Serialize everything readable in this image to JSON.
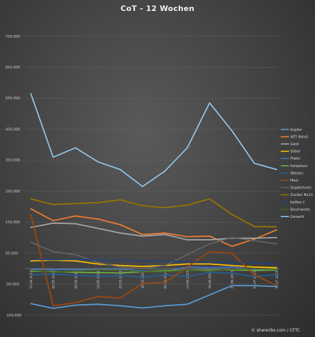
{
  "chart_data": {
    "type": "line",
    "title": "CoT - 12 Wochen",
    "xlabel": "",
    "ylabel": "",
    "ylim": [
      -150000,
      750000
    ],
    "y_tick_labels": [
      "750.000",
      "650.000",
      "550.000",
      "450.000",
      "350.000",
      "250.000",
      "150.000",
      "50.000",
      "-50.000",
      "-150.000"
    ],
    "y_tick_values": [
      750000,
      650000,
      550000,
      450000,
      350000,
      250000,
      150000,
      50000,
      -50000,
      -150000
    ],
    "categories": [
      "25.04.2023",
      "02.05.2023",
      "09.05.2023",
      "16.05.2023",
      "23.05.2023",
      "30.05.2023",
      "06.06.2023",
      "13.06.2023",
      "20.06.2023",
      "27.06.2023",
      "04.07.2023",
      "11.07.2023"
    ],
    "grid": true,
    "legend_position": "right",
    "series": [
      {
        "name": "Kupfer",
        "color": "#5b9bd5",
        "values": [
          -113000,
          -128000,
          -118000,
          -115000,
          -120000,
          -127000,
          -120000,
          -115000,
          -85000,
          -55000,
          -55000,
          -58000
        ]
      },
      {
        "name": "WTI Rohöl",
        "color": "#ed7d31",
        "values": [
          193000,
          155000,
          170000,
          160000,
          142000,
          110000,
          115000,
          103000,
          105000,
          72000,
          95000,
          125000
        ]
      },
      {
        "name": "Gold",
        "color": "#a5a5a5",
        "values": [
          133000,
          147000,
          145000,
          130000,
          115000,
          105000,
          110000,
          93000,
          93000,
          98000,
          98000,
          100000
        ]
      },
      {
        "name": "Silber",
        "color": "#ffc000",
        "values": [
          25000,
          27000,
          25000,
          15000,
          10000,
          7000,
          10000,
          15000,
          15000,
          10000,
          5000,
          3000
        ]
      },
      {
        "name": "Platin",
        "color": "#4472c4",
        "values": [
          -2000,
          -3000,
          -3000,
          -3000,
          -2000,
          -8000,
          -10000,
          5000,
          3000,
          5000,
          -2000,
          -5000
        ]
      },
      {
        "name": "Palladium",
        "color": "#70ad47",
        "values": [
          -8000,
          -10000,
          -12000,
          -13000,
          -14000,
          -10000,
          -7000,
          -5000,
          -5000,
          -4000,
          -6000,
          -5000
        ]
      },
      {
        "name": "Weizen",
        "color": "#255e91",
        "values": [
          -20000,
          -18000,
          -22000,
          -25000,
          -22000,
          -28000,
          -20000,
          -25000,
          -12000,
          -15000,
          -25000,
          -20000
        ]
      },
      {
        "name": "Mais",
        "color": "#9e480e",
        "values": [
          175000,
          -120000,
          -110000,
          -90000,
          -95000,
          -48000,
          -45000,
          5000,
          55000,
          50000,
          -20000,
          -55000
        ]
      },
      {
        "name": "Sojabohnen",
        "color": "#636363",
        "values": [
          85000,
          55000,
          45000,
          20000,
          5000,
          0,
          10000,
          45000,
          80000,
          100000,
          90000,
          80000
        ]
      },
      {
        "name": "Zucker No11",
        "color": "#997300",
        "values": [
          225000,
          207000,
          210000,
          213000,
          222000,
          203000,
          197000,
          205000,
          225000,
          175000,
          136000,
          135000
        ]
      },
      {
        "name": "Kaffee C",
        "color": "#264478",
        "values": [
          30000,
          28000,
          30000,
          28000,
          27000,
          25000,
          25000,
          22000,
          20000,
          20000,
          18000,
          15000
        ]
      },
      {
        "name": "Baumwolle",
        "color": "#43682b",
        "values": [
          -5000,
          -12000,
          -8000,
          -4000,
          -5000,
          -10000,
          -10000,
          -5000,
          -8000,
          -2000,
          0,
          -3000
        ]
      },
      {
        "name": "Gesamt",
        "color": "#8ec4ea",
        "values": [
          565000,
          360000,
          390000,
          345000,
          320000,
          265000,
          315000,
          390000,
          535000,
          445000,
          340000,
          320000
        ]
      }
    ]
  },
  "footer": {
    "source": "© shareribs.com / CFTC"
  }
}
